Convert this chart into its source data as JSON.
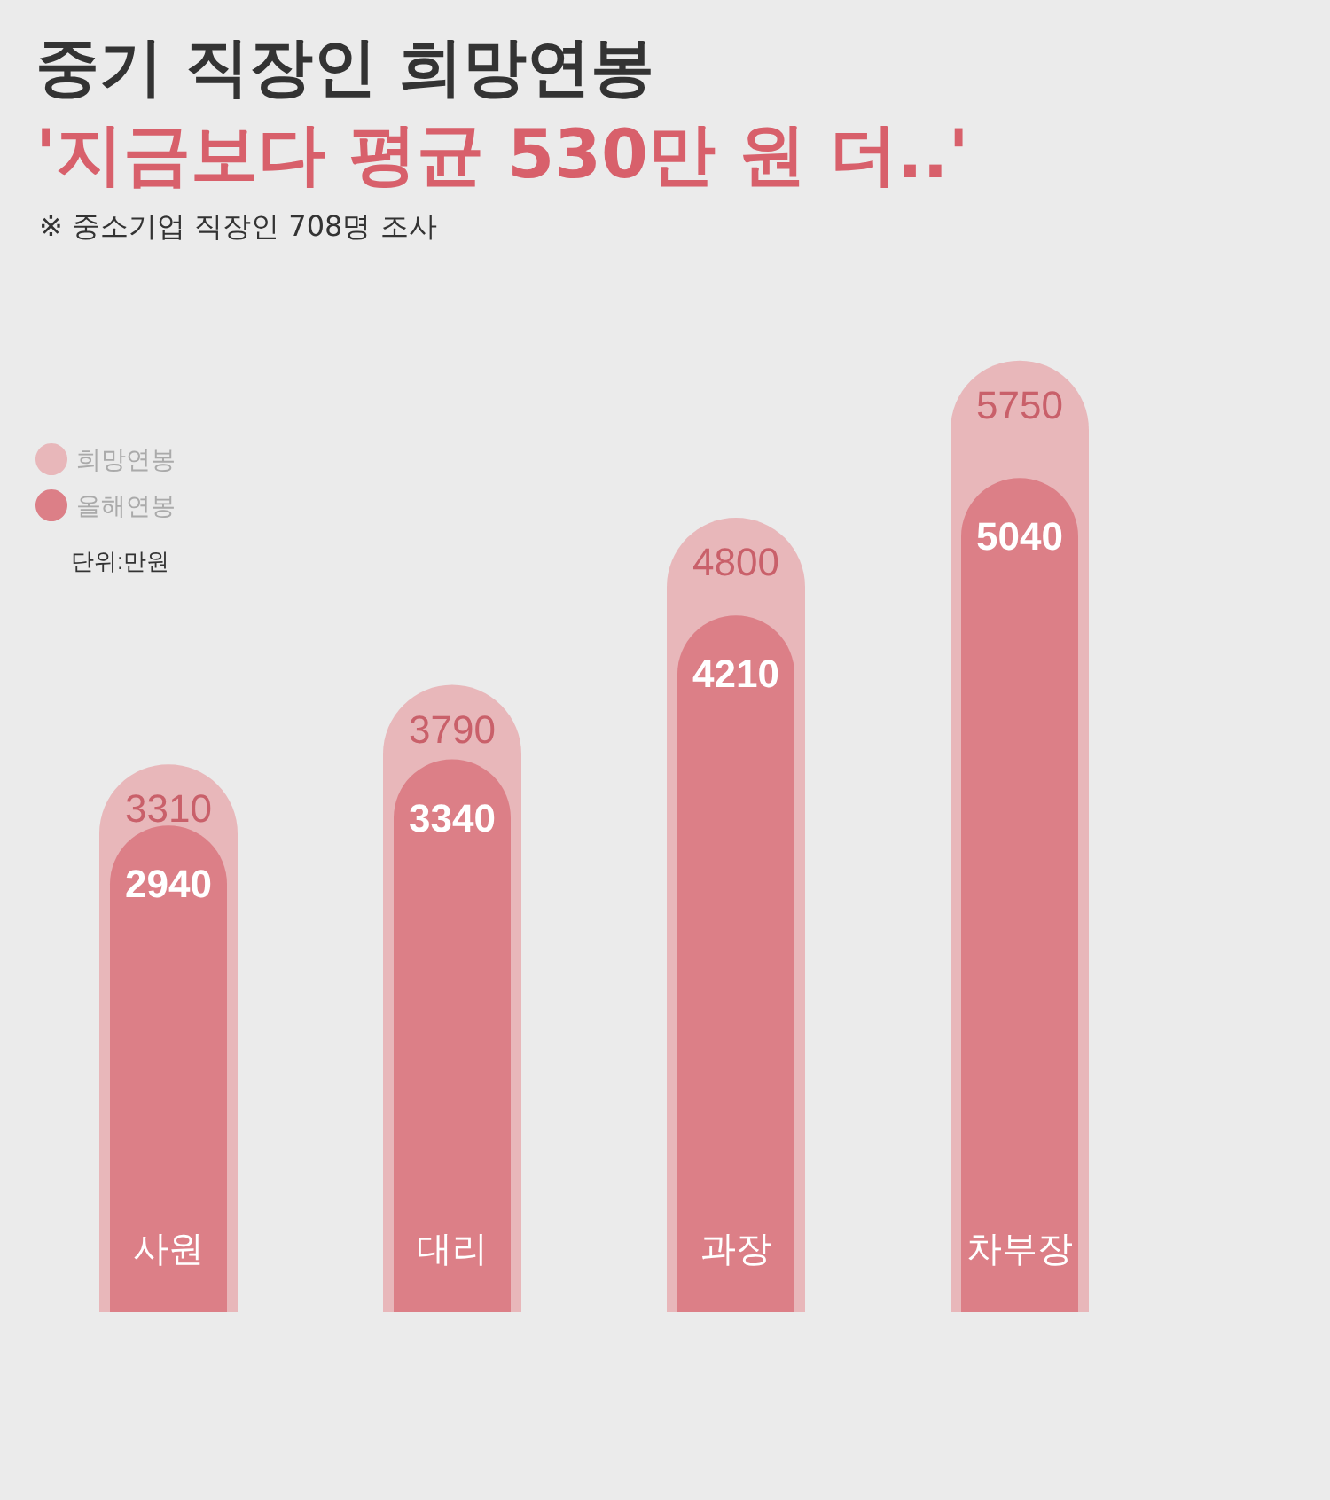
{
  "chart_data": {
    "type": "bar",
    "title": "중기 직장인 희망연봉",
    "subtitle": "'지금보다 평균 530만 원 더..'",
    "annotations": [
      "※ 중소기업 직장인 708명 조사",
      "단위:만원"
    ],
    "categories": [
      "사원",
      "대리",
      "과장",
      "차부장"
    ],
    "series": [
      {
        "name": "희망연봉",
        "color": "#e8b7ba",
        "values": [
          3310,
          3790,
          4800,
          5750
        ]
      },
      {
        "name": "올해연봉",
        "color": "#dc7f87",
        "values": [
          2940,
          3340,
          4210,
          5040
        ]
      }
    ],
    "data_labels": true,
    "legend": "top left",
    "grid": false
  }
}
